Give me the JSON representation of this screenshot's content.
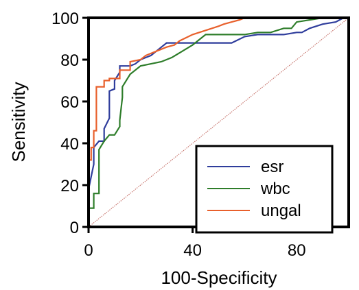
{
  "chart_data": {
    "type": "line",
    "title": "",
    "xlabel": "100-Specificity",
    "ylabel": "Sensitivity",
    "xlim": [
      0,
      100
    ],
    "ylim": [
      0,
      100
    ],
    "xticks": [
      0,
      40,
      80
    ],
    "xtick_labels": [
      "0",
      "40",
      "80"
    ],
    "yticks": [
      0,
      20,
      40,
      60,
      80,
      100
    ],
    "ytick_labels": [
      "0",
      "20",
      "40",
      "60",
      "80",
      "100"
    ],
    "grid": false,
    "legend_position": "bottom-right",
    "reference_line": {
      "x": [
        0,
        100
      ],
      "y": [
        0,
        100
      ],
      "color": "#c8766e"
    },
    "series": [
      {
        "name": "esr",
        "color": "#2f3d9c",
        "x": [
          0,
          0,
          2,
          2,
          4,
          6,
          6,
          8,
          8,
          10,
          10,
          12,
          12,
          14,
          16,
          18,
          20,
          22,
          24,
          26,
          28,
          30,
          33,
          35,
          40,
          45,
          50,
          55,
          60,
          65,
          70,
          75,
          80,
          82,
          85,
          90,
          95,
          98,
          100
        ],
        "y": [
          0,
          18,
          30,
          38,
          41,
          41,
          47,
          52,
          65,
          66,
          70,
          74,
          77,
          77,
          77,
          78,
          80,
          81,
          82,
          84,
          86,
          88,
          88,
          88,
          88,
          88,
          88,
          88,
          91,
          92,
          92,
          92,
          93,
          93,
          95,
          97,
          98,
          100,
          100
        ]
      },
      {
        "name": "wbc",
        "color": "#2e7d2a",
        "x": [
          0,
          0,
          2,
          2,
          4,
          4,
          6,
          6,
          8,
          10,
          12,
          12,
          13,
          13,
          16,
          20,
          24,
          28,
          32,
          36,
          40,
          45,
          50,
          55,
          60,
          65,
          70,
          75,
          78,
          80,
          85,
          90,
          95,
          100
        ],
        "y": [
          0,
          9,
          9,
          16,
          16,
          37,
          41,
          41,
          44,
          44,
          48,
          51,
          62,
          67,
          73,
          77,
          78,
          79,
          81,
          84,
          87,
          92,
          92,
          92,
          92,
          93,
          93,
          95,
          95,
          98,
          99,
          100,
          100,
          100
        ]
      },
      {
        "name": "ungal",
        "color": "#e8602c",
        "x": [
          0,
          0,
          1,
          1,
          2,
          2,
          3,
          3,
          6,
          6,
          8,
          8,
          12,
          12,
          16,
          16,
          20,
          22,
          26,
          30,
          33,
          35,
          40,
          45,
          50,
          52,
          55,
          58,
          60,
          65,
          70,
          80,
          90,
          100
        ],
        "y": [
          0,
          32,
          32,
          38,
          38,
          46,
          46,
          67,
          67,
          70,
          70,
          71,
          71,
          75,
          75,
          79,
          80,
          82,
          84,
          86,
          87,
          89,
          92,
          94,
          96,
          97,
          98,
          99,
          100,
          100,
          100,
          100,
          100,
          100
        ]
      }
    ]
  }
}
